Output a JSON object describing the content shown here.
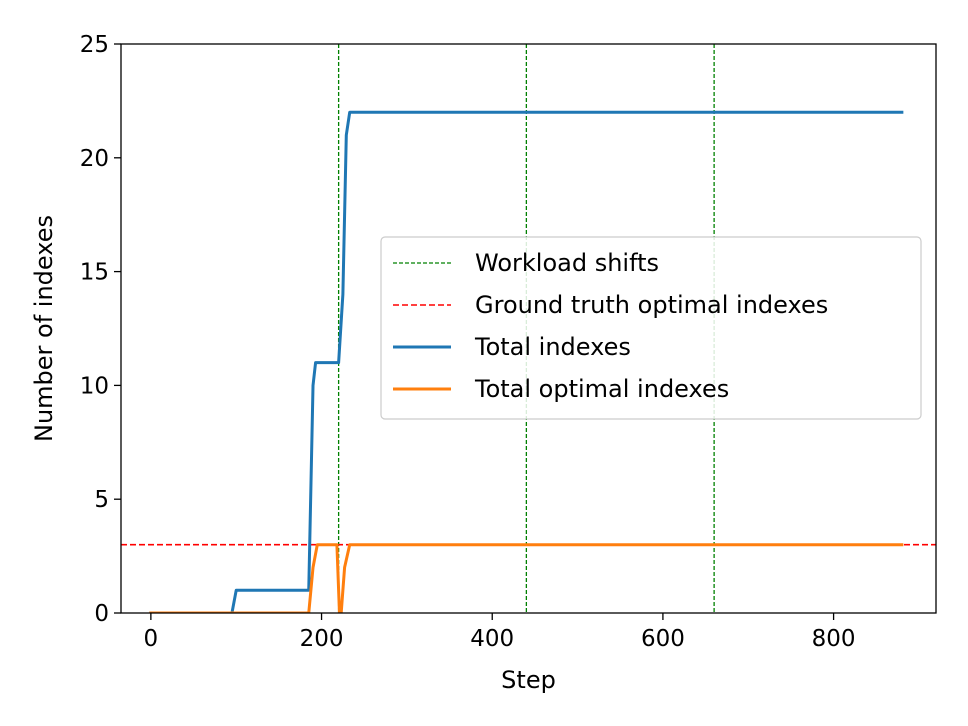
{
  "chart_data": {
    "type": "line",
    "xlabel": "Step",
    "ylabel": "Number of indexes",
    "xlim": [
      -35,
      920
    ],
    "ylim": [
      0,
      25
    ],
    "xticks": [
      0,
      200,
      400,
      600,
      800
    ],
    "yticks": [
      0,
      5,
      10,
      15,
      20,
      25
    ],
    "grid": false,
    "legend_position": "center-right",
    "series": [
      {
        "name": "Total indexes",
        "color": "#1f77b4",
        "style": "solid",
        "points": [
          [
            0,
            0
          ],
          [
            95,
            0
          ],
          [
            100,
            1
          ],
          [
            185,
            1
          ],
          [
            190,
            10
          ],
          [
            193,
            11
          ],
          [
            218,
            11
          ],
          [
            220,
            11
          ],
          [
            225,
            14
          ],
          [
            229,
            21
          ],
          [
            233,
            22
          ],
          [
            880,
            22
          ]
        ]
      },
      {
        "name": "Total optimal indexes",
        "color": "#ff7f0e",
        "style": "solid",
        "points": [
          [
            0,
            0
          ],
          [
            185,
            0
          ],
          [
            190,
            2
          ],
          [
            195,
            3
          ],
          [
            218,
            3
          ],
          [
            221,
            0
          ],
          [
            223,
            0
          ],
          [
            227,
            2
          ],
          [
            233,
            3
          ],
          [
            880,
            3
          ]
        ]
      }
    ],
    "reference_lines": [
      {
        "name": "Ground truth optimal indexes",
        "orientation": "horizontal",
        "value": 3,
        "color": "#ff0000",
        "style": "dashed"
      }
    ],
    "vertical_lines": {
      "name": "Workload shifts",
      "values": [
        220,
        440,
        660
      ],
      "color": "#008000",
      "style": "dashed"
    },
    "legend": [
      {
        "label": "Workload shifts",
        "color": "#008000",
        "style": "dashed-thin"
      },
      {
        "label": "Ground truth optimal indexes",
        "color": "#ff0000",
        "style": "dashed"
      },
      {
        "label": "Total indexes",
        "color": "#1f77b4",
        "style": "solid"
      },
      {
        "label": "Total optimal indexes",
        "color": "#ff7f0e",
        "style": "solid"
      }
    ]
  }
}
